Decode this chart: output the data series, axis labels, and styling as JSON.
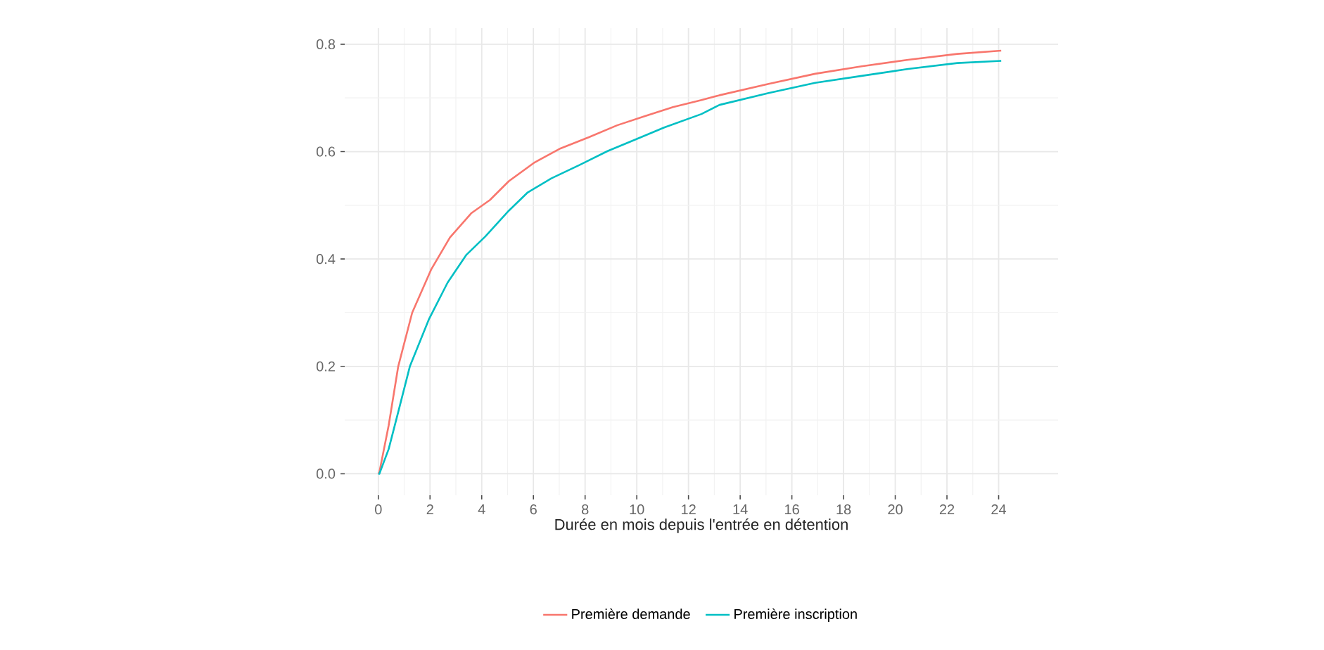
{
  "chart_data": {
    "type": "line",
    "xlabel": "Durée en mois depuis l'entrée en détention",
    "xlim": [
      -1.3,
      26.3
    ],
    "ylim": [
      -0.04,
      0.83
    ],
    "xticks": [
      0,
      2,
      4,
      6,
      8,
      10,
      12,
      14,
      16,
      18,
      20,
      22,
      24
    ],
    "yticks": [
      {
        "value": 0,
        "label": "0.0"
      },
      {
        "value": 0.2,
        "label": "0.2"
      },
      {
        "value": 0.4,
        "label": "0.4"
      },
      {
        "value": 0.6,
        "label": "0.6"
      },
      {
        "value": 0.8,
        "label": "0.8"
      }
    ],
    "grid": true,
    "legend": "bottom",
    "marker": "none",
    "line_style": "solid",
    "series": [
      {
        "name": "Première demande",
        "color": "#f8766d",
        "x": [
          0,
          0.04,
          0.4,
          0.77,
          1.31,
          2.04,
          2.77,
          3.59,
          4.32,
          5.05,
          6.05,
          7.05,
          8.15,
          9.24,
          10.3,
          11.4,
          12.5,
          13.2,
          15.1,
          16.9,
          18.7,
          20.5,
          22.4,
          24.1
        ],
        "values": [
          0,
          0.003,
          0.09,
          0.2,
          0.3,
          0.38,
          0.44,
          0.485,
          0.51,
          0.545,
          0.58,
          0.606,
          0.627,
          0.649,
          0.666,
          0.683,
          0.696,
          0.705,
          0.726,
          0.745,
          0.759,
          0.771,
          0.782,
          0.788
        ]
      },
      {
        "name": "Première inscription",
        "color": "#00bfc4",
        "x": [
          0,
          0.04,
          0.4,
          0.77,
          1.22,
          1.95,
          2.68,
          3.41,
          4.14,
          5.05,
          5.78,
          6.69,
          7.78,
          8.87,
          9.97,
          11.06,
          12.5,
          13.2,
          15.1,
          16.9,
          18.7,
          20.5,
          22.4,
          24.1
        ],
        "values": [
          0,
          0,
          0.046,
          0.115,
          0.2,
          0.287,
          0.356,
          0.408,
          0.442,
          0.49,
          0.524,
          0.55,
          0.575,
          0.601,
          0.623,
          0.645,
          0.67,
          0.687,
          0.709,
          0.728,
          0.741,
          0.754,
          0.765,
          0.769
        ]
      }
    ]
  }
}
